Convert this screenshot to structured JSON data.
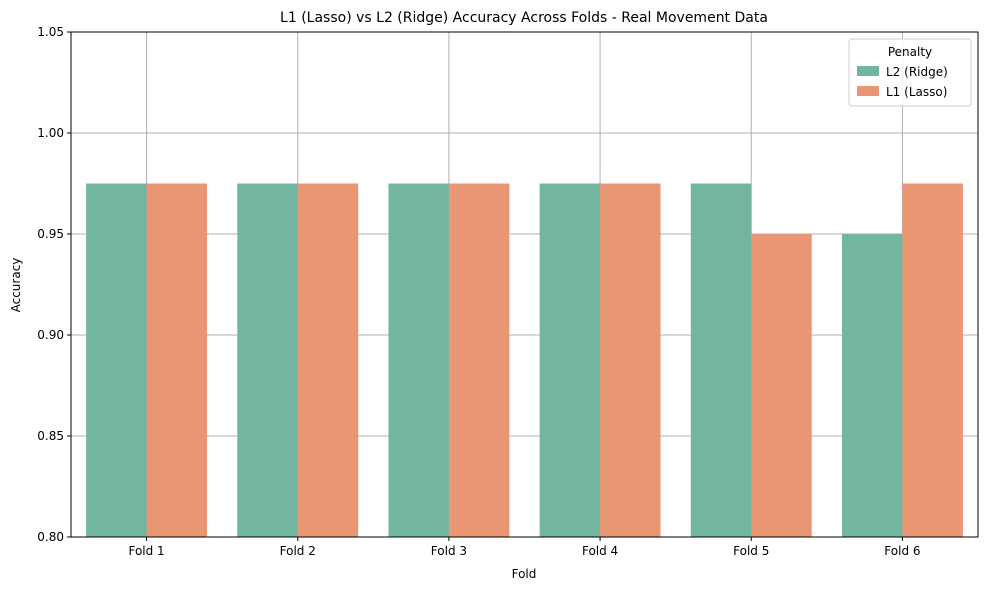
{
  "chart_data": {
    "type": "bar",
    "title": "L1 (Lasso) vs L2 (Ridge) Accuracy Across Folds - Real Movement Data",
    "xlabel": "Fold",
    "ylabel": "Accuracy",
    "categories": [
      "Fold 1",
      "Fold 2",
      "Fold 3",
      "Fold 4",
      "Fold 5",
      "Fold 6"
    ],
    "series": [
      {
        "name": "L2 (Ridge)",
        "color": "#72b6a1",
        "values": [
          0.975,
          0.975,
          0.975,
          0.975,
          0.975,
          0.95
        ]
      },
      {
        "name": "L1 (Lasso)",
        "color": "#e99675",
        "values": [
          0.975,
          0.975,
          0.975,
          0.975,
          0.95,
          0.975
        ]
      }
    ],
    "ylim": [
      0.8,
      1.05
    ],
    "yticks": [
      "0.80",
      "0.85",
      "0.90",
      "0.95",
      "1.00",
      "1.05"
    ],
    "grid": true,
    "legend": {
      "title": "Penalty",
      "placement": "top-right"
    }
  }
}
